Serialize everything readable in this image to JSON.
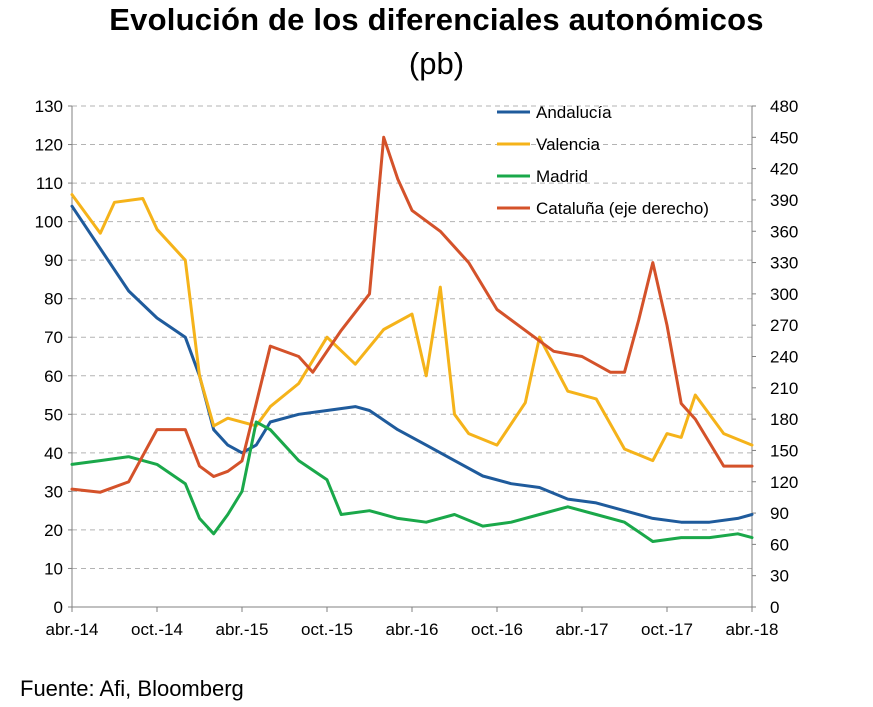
{
  "title": "Evolución de los diferenciales autonómicos",
  "subtitle": "(pb)",
  "source": "Fuente: Afi, Bloomberg",
  "chart_data": {
    "type": "line",
    "x_ticks": [
      "abr.-14",
      "oct.-14",
      "abr.-15",
      "oct.-15",
      "abr.-16",
      "oct.-16",
      "abr.-17",
      "oct.-17",
      "abr.-18"
    ],
    "x_range": [
      "2014-04",
      "2018-04"
    ],
    "y_left": {
      "range": [
        0,
        130
      ],
      "ticks": [
        0,
        10,
        20,
        30,
        40,
        50,
        60,
        70,
        80,
        90,
        100,
        110,
        120,
        130
      ]
    },
    "y_right": {
      "range": [
        0,
        480
      ],
      "ticks": [
        0,
        30,
        60,
        90,
        120,
        150,
        180,
        210,
        240,
        270,
        300,
        330,
        360,
        390,
        420,
        450,
        480
      ]
    },
    "grid": true,
    "legend_position": "top-right",
    "series": [
      {
        "name": "Andalucía",
        "axis": "left",
        "color": "#1f5b9c",
        "x": [
          "2014-04",
          "2014-06",
          "2014-08",
          "2014-10",
          "2014-12",
          "2015-01",
          "2015-02",
          "2015-03",
          "2015-04",
          "2015-05",
          "2015-06",
          "2015-08",
          "2015-10",
          "2015-12",
          "2016-01",
          "2016-03",
          "2016-05",
          "2016-07",
          "2016-09",
          "2016-11",
          "2017-01",
          "2017-03",
          "2017-05",
          "2017-07",
          "2017-09",
          "2017-11",
          "2018-01",
          "2018-03",
          "2018-04"
        ],
        "values": [
          104,
          93,
          82,
          75,
          70,
          60,
          46,
          42,
          40,
          42,
          48,
          50,
          51,
          52,
          51,
          46,
          42,
          38,
          34,
          32,
          31,
          28,
          27,
          25,
          23,
          22,
          22,
          23,
          24
        ]
      },
      {
        "name": "Valencia",
        "axis": "left",
        "color": "#f5b31a",
        "x": [
          "2014-04",
          "2014-06",
          "2014-07",
          "2014-09",
          "2014-10",
          "2014-12",
          "2015-01",
          "2015-02",
          "2015-03",
          "2015-05",
          "2015-06",
          "2015-08",
          "2015-10",
          "2015-12",
          "2016-02",
          "2016-04",
          "2016-05",
          "2016-06",
          "2016-07",
          "2016-08",
          "2016-10",
          "2016-12",
          "2017-01",
          "2017-03",
          "2017-05",
          "2017-07",
          "2017-09",
          "2017-10",
          "2017-11",
          "2017-12",
          "2018-02",
          "2018-04"
        ],
        "values": [
          107,
          97,
          105,
          106,
          98,
          90,
          60,
          47,
          49,
          47,
          52,
          58,
          70,
          63,
          72,
          76,
          60,
          83,
          50,
          45,
          42,
          53,
          70,
          56,
          54,
          41,
          38,
          45,
          44,
          55,
          45,
          42
        ]
      },
      {
        "name": "Madrid",
        "axis": "left",
        "color": "#1aa84a",
        "x": [
          "2014-04",
          "2014-06",
          "2014-08",
          "2014-10",
          "2014-12",
          "2015-01",
          "2015-02",
          "2015-03",
          "2015-04",
          "2015-05",
          "2015-06",
          "2015-08",
          "2015-10",
          "2015-11",
          "2016-01",
          "2016-03",
          "2016-05",
          "2016-07",
          "2016-09",
          "2016-11",
          "2017-01",
          "2017-03",
          "2017-05",
          "2017-07",
          "2017-09",
          "2017-11",
          "2018-01",
          "2018-03",
          "2018-04"
        ],
        "values": [
          37,
          38,
          39,
          37,
          32,
          23,
          19,
          24,
          30,
          48,
          46,
          38,
          33,
          24,
          25,
          23,
          22,
          24,
          21,
          22,
          24,
          26,
          24,
          22,
          17,
          18,
          18,
          19,
          18
        ]
      },
      {
        "name": "Cataluña  (eje derecho)",
        "axis": "right",
        "color": "#d4522a",
        "x": [
          "2014-04",
          "2014-06",
          "2014-08",
          "2014-09",
          "2014-10",
          "2014-12",
          "2015-01",
          "2015-02",
          "2015-03",
          "2015-04",
          "2015-05",
          "2015-06",
          "2015-08",
          "2015-09",
          "2015-11",
          "2016-01",
          "2016-02",
          "2016-03",
          "2016-04",
          "2016-06",
          "2016-08",
          "2016-10",
          "2016-12",
          "2017-02",
          "2017-04",
          "2017-06",
          "2017-07",
          "2017-08",
          "2017-09",
          "2017-10",
          "2017-11",
          "2017-12",
          "2018-02",
          "2018-04"
        ],
        "values": [
          113,
          110,
          120,
          145,
          170,
          170,
          135,
          125,
          130,
          140,
          195,
          250,
          240,
          225,
          265,
          300,
          450,
          410,
          380,
          360,
          330,
          285,
          265,
          245,
          240,
          225,
          225,
          275,
          330,
          270,
          195,
          180,
          135,
          135
        ]
      }
    ]
  }
}
